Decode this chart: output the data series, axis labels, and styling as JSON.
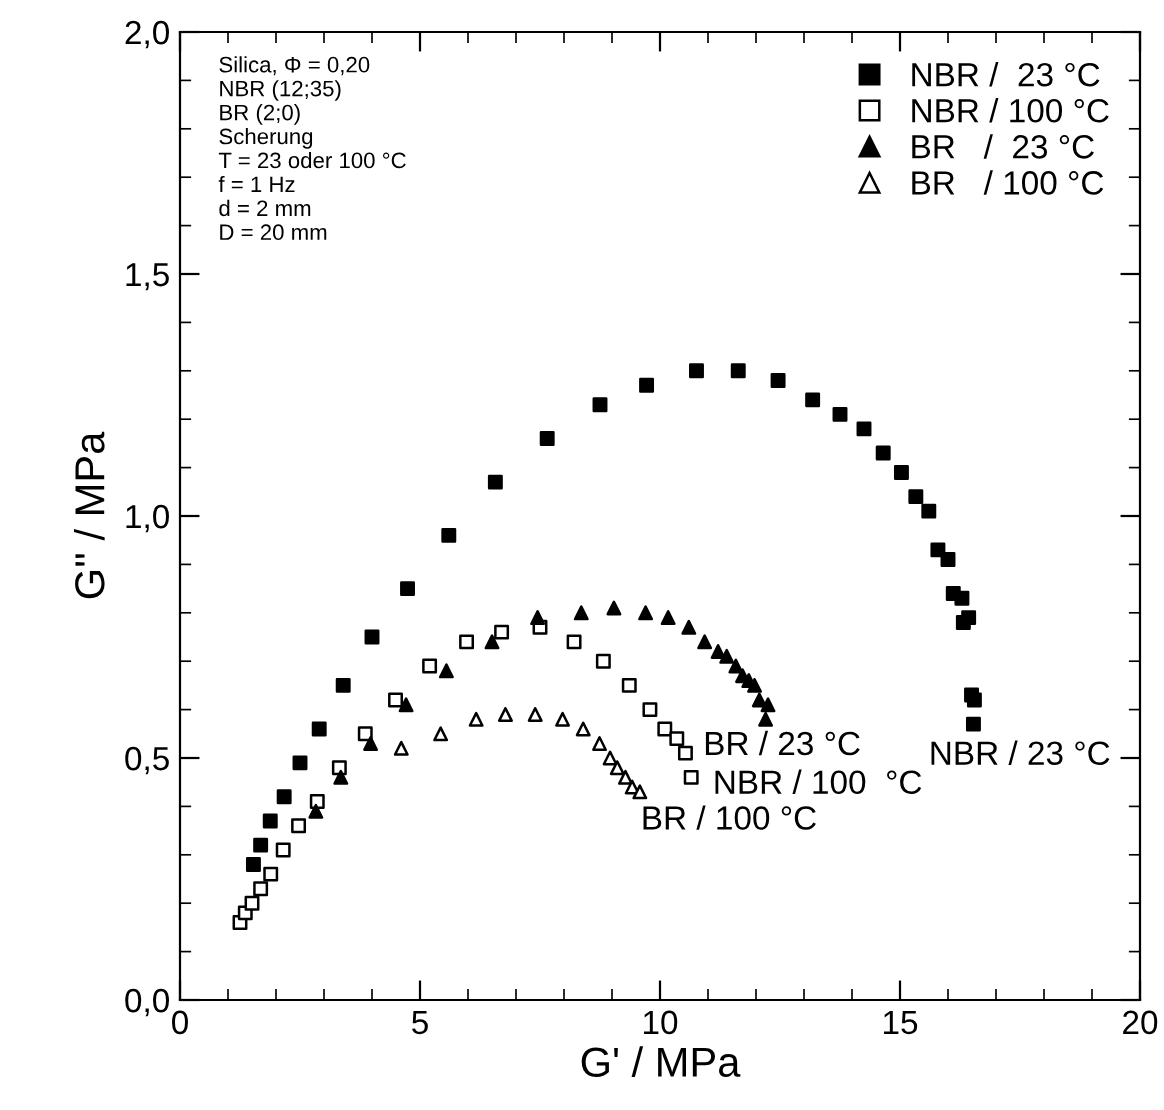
{
  "chart_data": {
    "type": "scatter",
    "xlabel": "G' / MPa",
    "ylabel": "G'' / MPa",
    "xlim": [
      0,
      20
    ],
    "ylim": [
      0,
      2.0
    ],
    "xticks": [
      0,
      5,
      10,
      15,
      20
    ],
    "yticks": [
      {
        "value": 0,
        "label": "0,0"
      },
      {
        "value": 0.5,
        "label": "0,5"
      },
      {
        "value": 1.0,
        "label": "1,0"
      },
      {
        "value": 1.5,
        "label": "1,5"
      },
      {
        "value": 2.0,
        "label": "2,0"
      }
    ],
    "grid": false,
    "legend": "top right",
    "series": [
      {
        "name": "NBR /  23 °C",
        "color": "#000000",
        "marker": "square",
        "x": [
          1.53,
          1.68,
          1.88,
          2.17,
          2.5,
          2.9,
          3.4,
          4.0,
          4.74,
          5.6,
          6.57,
          7.65,
          8.75,
          9.72,
          10.76,
          11.63,
          12.46,
          13.18,
          13.75,
          14.25,
          14.65,
          15.03,
          15.33,
          15.6,
          15.79,
          16.0,
          16.11,
          16.29,
          16.32,
          16.43,
          16.49,
          16.55,
          16.53
        ],
        "values": [
          0.28,
          0.32,
          0.37,
          0.42,
          0.49,
          0.56,
          0.65,
          0.75,
          0.85,
          0.96,
          1.07,
          1.16,
          1.23,
          1.27,
          1.3,
          1.3,
          1.28,
          1.24,
          1.21,
          1.18,
          1.13,
          1.09,
          1.04,
          1.01,
          0.93,
          0.91,
          0.84,
          0.83,
          0.78,
          0.79,
          0.63,
          0.62,
          0.57
        ]
      },
      {
        "name": "NBR / 100 °C",
        "color": "#000000",
        "marker": "square",
        "x": [
          1.25,
          1.36,
          1.5,
          1.68,
          1.89,
          2.15,
          2.47,
          2.86,
          3.32,
          3.86,
          4.49,
          5.2,
          5.97,
          6.7,
          7.5,
          8.21,
          8.82,
          9.36,
          9.79,
          10.1,
          10.35,
          10.53,
          10.65
        ],
        "values": [
          0.16,
          0.18,
          0.2,
          0.23,
          0.26,
          0.31,
          0.36,
          0.41,
          0.48,
          0.55,
          0.62,
          0.69,
          0.74,
          0.76,
          0.77,
          0.74,
          0.7,
          0.65,
          0.6,
          0.56,
          0.54,
          0.51,
          0.46
        ]
      },
      {
        "name": "BR   /  23 °C",
        "color": "#000000",
        "marker": "triangle",
        "x": [
          2.83,
          3.35,
          3.97,
          4.71,
          5.55,
          6.5,
          7.45,
          8.36,
          9.04,
          9.7,
          10.17,
          10.6,
          10.93,
          11.21,
          11.39,
          11.58,
          11.72,
          11.85,
          11.97,
          12.07,
          12.25,
          12.2
        ],
        "values": [
          0.39,
          0.46,
          0.53,
          0.61,
          0.68,
          0.74,
          0.79,
          0.8,
          0.81,
          0.8,
          0.79,
          0.77,
          0.74,
          0.72,
          0.71,
          0.69,
          0.67,
          0.66,
          0.65,
          0.62,
          0.61,
          0.58
        ]
      },
      {
        "name": "BR   / 100 °C",
        "color": "#000000",
        "marker": "triangle",
        "x": [
          4.61,
          5.43,
          6.17,
          6.78,
          7.4,
          7.97,
          8.4,
          8.74,
          8.96,
          9.11,
          9.28,
          9.42,
          9.58
        ],
        "values": [
          0.52,
          0.55,
          0.58,
          0.59,
          0.59,
          0.58,
          0.56,
          0.53,
          0.5,
          0.48,
          0.46,
          0.44,
          0.43
        ]
      }
    ],
    "annotations": [
      "Silica, Φ = 0,20\nNBR (12;35)\nBR (2;0)\nScherung\nT = 23 oder 100 °C\nf = 1 Hz\nd = 2 mm\nD = 20 mm",
      "NBR / 23 °C",
      "BR / 23 °C",
      "NBR / 100  °C",
      "BR / 100 °C"
    ]
  }
}
